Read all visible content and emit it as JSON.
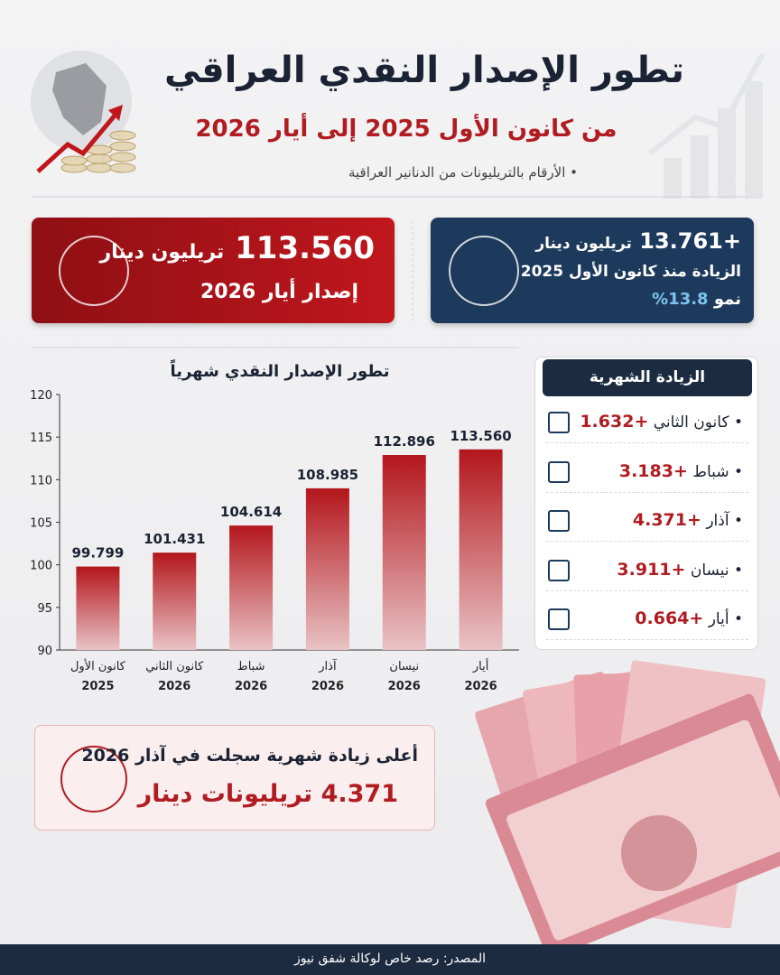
{
  "header": {
    "title": "تطور الإصدار النقدي العراقي",
    "subtitle": "من كانون الأول 2025 إلى أيار 2026",
    "note": "الأرقام بالتريليونات من الدنانير العراقية"
  },
  "cards": {
    "current": {
      "value": "113.560",
      "unit": "تريليون دينار",
      "label": "إصدار أيار 2026"
    },
    "increase": {
      "value": "+13.761",
      "unit": "تريليون دينار",
      "label": "الزيادة منذ كانون الأول 2025",
      "growth_label": "نمو",
      "growth": "13.8%"
    }
  },
  "chart_data": {
    "type": "bar",
    "title": "تطور الإصدار النقدي شهرياً",
    "categories": [
      [
        "كانون الأول",
        "2025"
      ],
      [
        "كانون الثاني",
        "2026"
      ],
      [
        "شباط",
        "2026"
      ],
      [
        "آذار",
        "2026"
      ],
      [
        "نيسان",
        "2026"
      ],
      [
        "أيار",
        "2026"
      ]
    ],
    "values": [
      99.799,
      101.431,
      104.614,
      108.985,
      112.896,
      113.56
    ],
    "value_labels": [
      "99.799",
      "101.431",
      "104.614",
      "108.985",
      "112.896",
      "113.560"
    ],
    "color": "#b3161c",
    "ylim": [
      90,
      120
    ],
    "yticks": [
      90,
      95,
      100,
      105,
      110,
      115,
      120
    ]
  },
  "monthly_increase": {
    "title": "الزيادة الشهرية",
    "items": [
      {
        "month": "كانون الثاني",
        "value": "+1.632"
      },
      {
        "month": "شباط",
        "value": "+3.183"
      },
      {
        "month": "آذار",
        "value": "+4.371"
      },
      {
        "month": "نيسان",
        "value": "+3.911"
      },
      {
        "month": "أيار",
        "value": "+0.664"
      }
    ]
  },
  "highlight": {
    "label": "أعلى زيادة شهرية سجلت في آذار 2026",
    "value": "4.371 تريليونات دينار"
  },
  "footer": {
    "source": "المصدر: رصد خاص لوكالة شفق نيوز"
  }
}
